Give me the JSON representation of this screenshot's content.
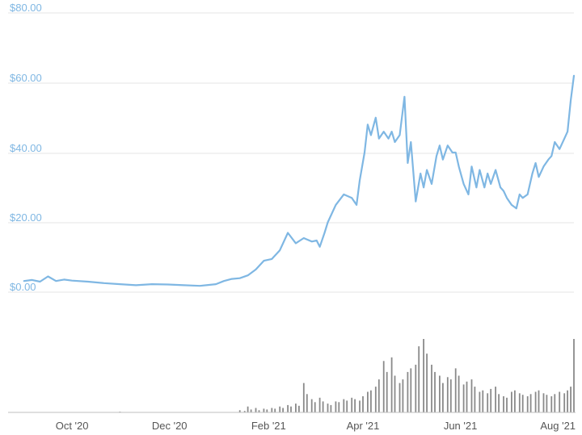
{
  "chart_data": {
    "type": "line",
    "colors": {
      "price_line": "#7fb7e3",
      "volume_bar": "#8a8a8a",
      "grid": "#e6e6e6",
      "ytick": "#7fb7e3",
      "xtick": "#555555"
    },
    "y_ticks": [
      "$0.00",
      "$20.00",
      "$40.00",
      "$60.00",
      "$80.00"
    ],
    "y_tick_values": [
      0,
      20,
      40,
      60,
      80
    ],
    "ylim": [
      0,
      80
    ],
    "x_ticks": [
      "Oct '20",
      "Dec '20",
      "Feb '21",
      "Apr '21",
      "Jun '21",
      "Aug '21"
    ],
    "x_tick_days": [
      30,
      91,
      153,
      212,
      273,
      334
    ],
    "xlim_days": [
      -10,
      345
    ],
    "grid": true,
    "series": [
      {
        "kind": "price",
        "x_days": [
          0,
          5,
          10,
          15,
          20,
          25,
          30,
          40,
          50,
          60,
          70,
          80,
          90,
          100,
          110,
          120,
          125,
          130,
          135,
          140,
          145,
          150,
          155,
          160,
          165,
          170,
          175,
          180,
          183,
          185,
          188,
          190,
          195,
          200,
          205,
          208,
          210,
          213,
          215,
          217,
          220,
          222,
          225,
          228,
          230,
          232,
          235,
          238,
          240,
          242,
          245,
          248,
          250,
          252,
          255,
          258,
          260,
          262,
          265,
          268,
          270,
          272,
          275,
          278,
          280,
          283,
          285,
          288,
          290,
          292,
          295,
          298,
          300,
          302,
          305,
          308,
          310,
          312,
          315,
          318,
          320,
          322,
          325,
          328,
          330,
          332,
          335,
          338,
          340,
          342,
          344
        ],
        "values": [
          3.2,
          3.5,
          3.0,
          4.5,
          3.2,
          3.6,
          3.3,
          3.0,
          2.6,
          2.3,
          2.0,
          2.3,
          2.2,
          2.0,
          1.8,
          2.3,
          3.2,
          3.8,
          4.0,
          4.8,
          6.5,
          9.0,
          9.5,
          12.0,
          17.0,
          14.0,
          15.5,
          14.5,
          14.8,
          13.0,
          17.0,
          20.0,
          25.0,
          28.0,
          27.0,
          25.0,
          32.0,
          40.0,
          48.0,
          45.0,
          50.0,
          44.0,
          46.0,
          44.0,
          46.0,
          43.0,
          45.0,
          56.0,
          37.0,
          43.0,
          26.0,
          34.0,
          30.0,
          35.0,
          31.0,
          39.0,
          42.0,
          38.0,
          42.0,
          40.0,
          40.0,
          36.0,
          31.0,
          28.0,
          36.0,
          30.0,
          35.0,
          30.0,
          34.0,
          31.0,
          35.0,
          30.0,
          29.0,
          27.0,
          25.0,
          24.0,
          28.0,
          27.0,
          28.0,
          34.0,
          37.0,
          33.0,
          36.0,
          38.0,
          39.0,
          43.0,
          41.0,
          44.0,
          46.0,
          55.0,
          62.0
        ]
      },
      {
        "kind": "volume",
        "max_value": 100,
        "x_days": [
          60,
          135,
          138,
          140,
          142,
          145,
          147,
          150,
          152,
          155,
          157,
          160,
          162,
          165,
          167,
          170,
          172,
          175,
          177,
          180,
          182,
          185,
          187,
          190,
          192,
          195,
          197,
          200,
          202,
          205,
          207,
          210,
          212,
          215,
          217,
          220,
          222,
          225,
          227,
          230,
          232,
          235,
          237,
          240,
          242,
          245,
          247,
          250,
          252,
          255,
          257,
          260,
          262,
          265,
          267,
          270,
          272,
          275,
          277,
          280,
          282,
          285,
          287,
          290,
          292,
          295,
          297,
          300,
          302,
          305,
          307,
          310,
          312,
          315,
          317,
          320,
          322,
          325,
          327,
          330,
          332,
          335,
          338,
          340,
          342,
          344
        ],
        "values": [
          1,
          3,
          2,
          8,
          4,
          6,
          3,
          5,
          4,
          6,
          5,
          8,
          6,
          10,
          8,
          12,
          9,
          40,
          25,
          18,
          14,
          20,
          15,
          12,
          10,
          15,
          14,
          18,
          16,
          20,
          18,
          16,
          22,
          28,
          30,
          35,
          45,
          70,
          55,
          75,
          50,
          40,
          45,
          55,
          60,
          65,
          90,
          100,
          80,
          65,
          55,
          50,
          40,
          48,
          45,
          60,
          50,
          38,
          42,
          45,
          35,
          28,
          30,
          26,
          32,
          35,
          25,
          22,
          20,
          28,
          30,
          26,
          24,
          22,
          25,
          28,
          30,
          26,
          24,
          22,
          25,
          28,
          26,
          30,
          35,
          100
        ]
      }
    ]
  }
}
